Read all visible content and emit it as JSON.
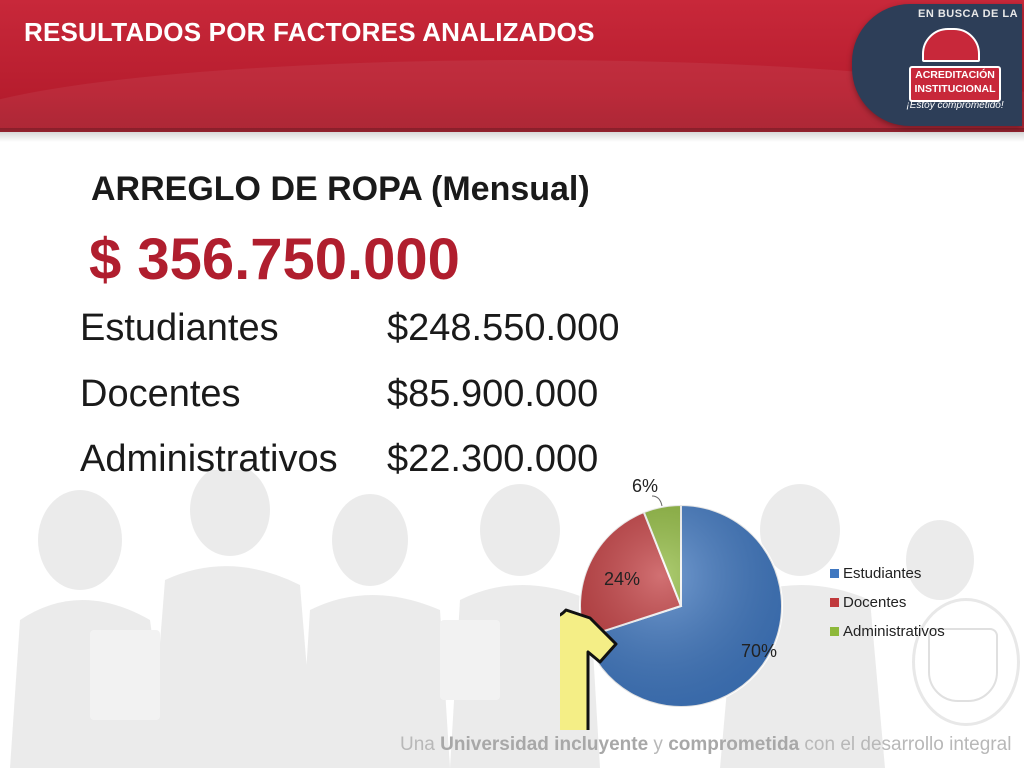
{
  "header": {
    "title": "RESULTADOS POR FACTORES ANALIZADOS"
  },
  "logo": {
    "arc_text": "EN BUSCA DE LA",
    "line1": "ACREDITACIÓN",
    "line2": "INSTITUCIONAL",
    "tagline": "¡Estoy comprometido!"
  },
  "main": {
    "subtitle": "ARREGLO DE ROPA (Mensual)",
    "total": "$ 356.750.000",
    "rows": [
      {
        "label": "Estudiantes",
        "value": "$248.550.000"
      },
      {
        "label": "Docentes",
        "value": "$85.900.000"
      },
      {
        "label": "Administrativos",
        "value": "$22.300.000"
      }
    ]
  },
  "chart_data": {
    "type": "pie",
    "categories": [
      "Estudiantes",
      "Docentes",
      "Administrativos"
    ],
    "values": [
      70,
      24,
      6
    ],
    "data_labels": [
      "70%",
      "24%",
      "6%"
    ],
    "colors": [
      "#3f77c0",
      "#c0393c",
      "#8db83a"
    ],
    "legend_position": "right"
  },
  "footer": {
    "text_1": "Una ",
    "text_2": "Universidad incluyente",
    "text_3": " y ",
    "text_4": "comprometida",
    "text_5": " con el desarrollo integral"
  },
  "icons": [
    "tshirt-icon",
    "university-seal-icon"
  ]
}
